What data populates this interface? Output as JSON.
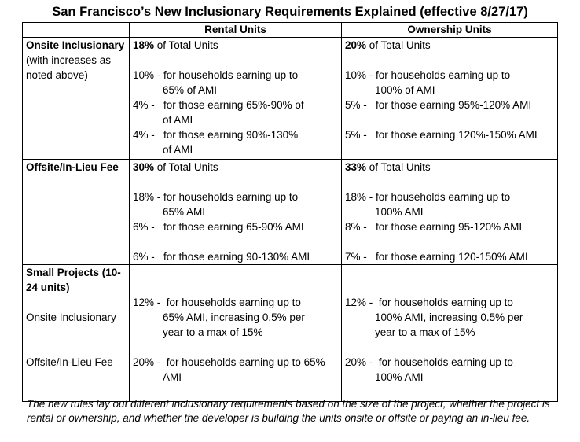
{
  "title": "San Francisco’s New Inclusionary Requirements Explained (effective 8/27/17)",
  "columns": [
    "",
    "Rental Units",
    "Ownership Units"
  ],
  "onsite": {
    "label_bold": "Onsite Inclusionary",
    "label_note": "(with increases as noted above)",
    "rental_total_pct": "18%",
    "rental_total_text": " of Total Units",
    "ownership_total_pct": "20%",
    "ownership_total_text": " of Total Units",
    "rental_tiers": [
      {
        "pct": "10% -",
        "line1": "for households earning up to",
        "line2": "65% of AMI"
      },
      {
        "pct": "4% -",
        "line1": "for those earning 65%-90% of",
        "line2": "of AMI"
      },
      {
        "pct": "4% -",
        "line1": "for those earning 90%-130%",
        "line2": "of AMI"
      }
    ],
    "ownership_tiers": [
      {
        "pct": "10% -",
        "line1": "for households earning up to",
        "line2": "100% of AMI"
      },
      {
        "pct": "5% -",
        "line1": "for those earning 95%-120% AMI"
      },
      {
        "pct": "5% -",
        "line1": "for those earning 120%-150% AMI"
      }
    ]
  },
  "offsite": {
    "label_bold": "Offsite/In-Lieu Fee",
    "rental_total_pct": "30%",
    "rental_total_text": " of Total Units",
    "ownership_total_pct": "33%",
    "ownership_total_text": " of Total Units",
    "rental_tiers": [
      {
        "pct": "18% -",
        "line1": "for households earning up to",
        "line2": "65% AMI"
      },
      {
        "pct": "6% -",
        "line1": "for those earning 65-90% AMI"
      },
      {
        "pct": "6% -",
        "line1": "for those earning 90-130% AMI"
      }
    ],
    "ownership_tiers": [
      {
        "pct": "18% -",
        "line1": "for households earning up to",
        "line2": "100% AMI"
      },
      {
        "pct": "8% -",
        "line1": "for those earning 95-120% AMI"
      },
      {
        "pct": "7% -",
        "line1": "for those earning 120-150% AMI"
      }
    ]
  },
  "small": {
    "label_bold": "Small Projects (10-24 units)",
    "onsite_label": "Onsite Inclusionary",
    "offsite_label": "Offsite/In-Lieu Fee",
    "rental_onsite": {
      "pct": "12% -",
      "line1": "for households earning up to",
      "line2": "65% AMI, increasing 0.5% per",
      "line3": "year to a max of 15%"
    },
    "ownership_onsite": {
      "pct": "12% -",
      "line1": "for households earning up to",
      "line2": "100% AMI, increasing 0.5% per",
      "line3": "year to a max of 15%"
    },
    "rental_offsite": {
      "pct": "20% -",
      "line1": "for households earning up to 65%",
      "line2": "AMI"
    },
    "ownership_offsite": {
      "pct": "20% -",
      "line1": "for households earning up to",
      "line2": "100% AMI"
    }
  },
  "caption": "The new rules lay out different inclusionary requirements based on the size of the project, whether the project is rental or ownership, and whether the developer is building the units onsite or offsite or paying an in-lieu fee."
}
